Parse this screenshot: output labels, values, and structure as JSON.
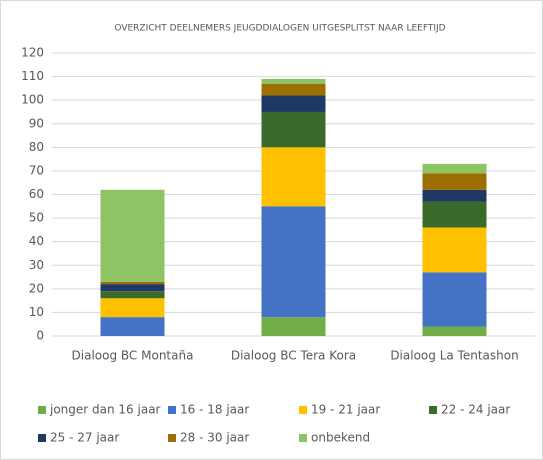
{
  "chart_data": {
    "type": "stacked_bar",
    "title": "OVERZICHT DEELNEMERS JEUGDDIALOGEN UITGESPLITST NAAR LEEFTIJD",
    "categories": [
      "Dialoog BC Montaña",
      "Dialoog BC Tera Kora",
      "Dialoog La Tentashon"
    ],
    "series": [
      {
        "name": "jonger dan 16 jaar",
        "color": "#70ad47",
        "values": [
          0,
          8,
          4
        ]
      },
      {
        "name": "16 - 18 jaar",
        "color": "#4472c4",
        "values": [
          8,
          47,
          23
        ]
      },
      {
        "name": "19 - 21 jaar",
        "color": "#ffc000",
        "values": [
          8,
          25,
          19
        ]
      },
      {
        "name": "22 - 24 jaar",
        "color": "#3b6b2a",
        "values": [
          3,
          15,
          11
        ]
      },
      {
        "name": "25 - 27 jaar",
        "color": "#203864",
        "values": [
          3,
          7,
          5
        ]
      },
      {
        "name": "28 - 30 jaar",
        "color": "#9c7000",
        "values": [
          1,
          5,
          7
        ]
      },
      {
        "name": "onbekend",
        "color": "#8fc464",
        "values": [
          39,
          2,
          4
        ]
      }
    ],
    "ylim": [
      0,
      120
    ],
    "yticks": [
      0,
      10,
      20,
      30,
      40,
      50,
      60,
      70,
      80,
      90,
      100,
      110,
      120
    ],
    "grid": true,
    "legend": "bottom"
  }
}
